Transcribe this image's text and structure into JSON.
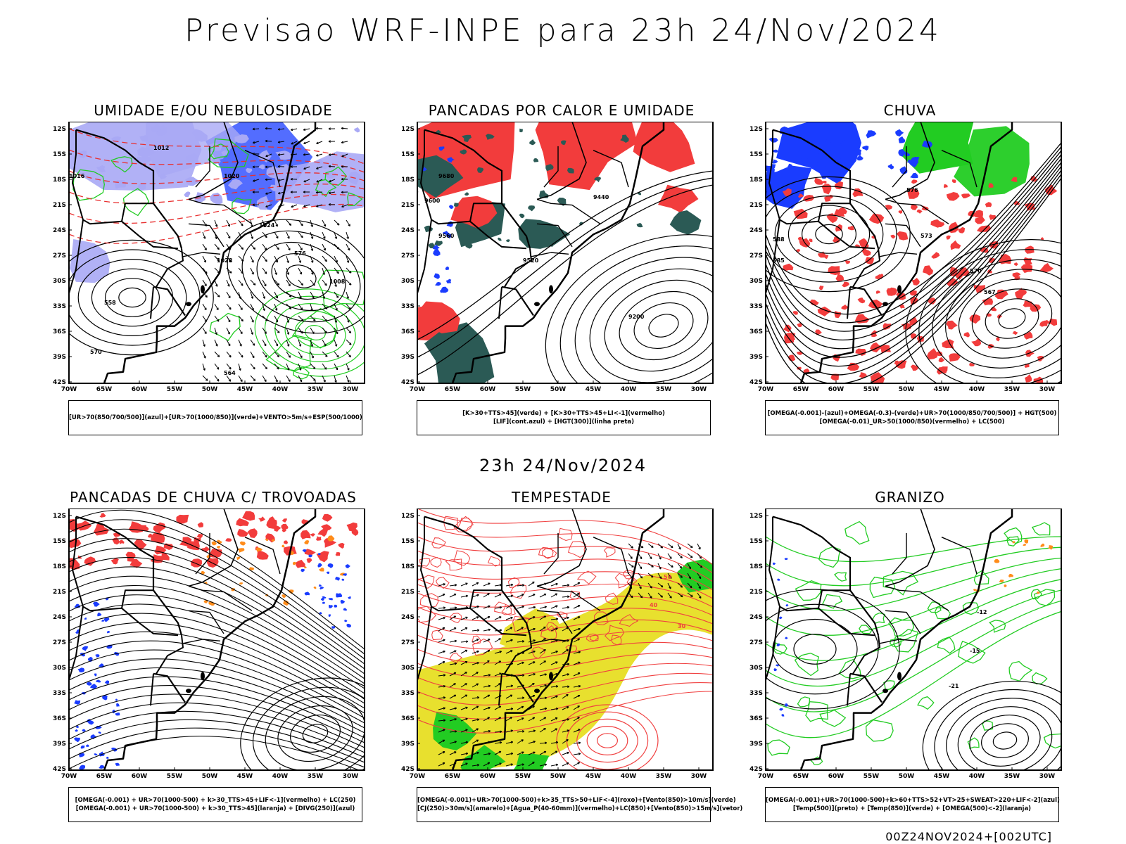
{
  "header": {
    "title": "Previsao WRF-INPE  para 23h 24/Nov/2024"
  },
  "row2": {
    "subtitle": "23h 24/Nov/2024"
  },
  "footer": {
    "run": "00Z24NOV2024+[002UTC]"
  },
  "axes": {
    "lat_labels": [
      "12S",
      "15S",
      "18S",
      "21S",
      "24S",
      "27S",
      "30S",
      "33S",
      "36S",
      "39S",
      "42S"
    ],
    "lon_labels": [
      "70W",
      "65W",
      "60W",
      "55W",
      "50W",
      "45W",
      "40W",
      "35W",
      "30W"
    ]
  },
  "colors": {
    "red": "#f23c3c",
    "green": "#22cc22",
    "blue": "#1a3cff",
    "lightblue": "#a9a9f5",
    "yellow": "#e8e02e",
    "darkteal": "#2b5a55",
    "orange": "#ff8c1a",
    "black": "#000000"
  },
  "panels": [
    {
      "title": "UMIDADE E/OU NEBULOSIDADE",
      "legend": [
        "[UR>70(850/700/500)](azul)+[UR>70(1000/850)](verde)+VENTO>5m/s+ESP(500/1000)"
      ],
      "contour_labels": [
        "1012",
        "1016",
        "1020",
        "1024",
        "1028",
        "1008",
        "576",
        "570",
        "564",
        "558"
      ]
    },
    {
      "title": "PANCADAS POR CALOR E UMIDADE",
      "legend": [
        "[K>30+TTS>45](verde) + [K>30+TTS>45+LI<-1](vermelho)",
        "[LIF](cont.azul) + [HGT(300)](linha preta)"
      ],
      "contour_labels": [
        "9680",
        "9600",
        "9520",
        "9440",
        "9200",
        "9560"
      ]
    },
    {
      "title": "CHUVA",
      "legend": [
        "[OMEGA(-0.001)-(azul)+OMEGA(-0.3)-(verde)+UR>70(1000/850/700/500)] + HGT(500)",
        "[OMEGA(-0.01)_UR>50(1000/850)(vermelho) + LC(500)"
      ],
      "contour_labels": [
        "576",
        "573",
        "570",
        "567",
        "588",
        "585"
      ]
    },
    {
      "title": "PANCADAS DE CHUVA C/ TROVOADAS",
      "legend": [
        "[OMEGA(-0.001) + UR>70(1000-500) + k>30_TTS>45+LIF<-1](vermelho) + LC(250)",
        "[OMEGA(-0.001) + UR>70(1000-500) + k>30_TTS>45](laranja) + [DIVG(250)](azul)"
      ],
      "contour_labels": []
    },
    {
      "title": "TEMPESTADE",
      "legend": [
        "[OMEGA(-0.001)+UR>70(1000-500)+k>35_TTS>50+LIF<-4](roxo)+[Vento(850)>10m/s](verde)",
        "[CJ(250)>30m/s](amarelo)+[Agua_P(40-60mm)](vermelho)+LC(850)+[Vento(850)>15m/s](vetor)"
      ],
      "contour_labels": [
        "50",
        "40",
        "30"
      ]
    },
    {
      "title": "GRANIZO",
      "legend": [
        "[OMEGA(-0.001)+UR>70(1000-500)+k>60+TTS>52+VT>25+SWEAT>220+LIF<-2](azul)",
        "[Temp(500)](preto) + [Temp(850)](verde) + [OMEGA(500)<-2](laranja)"
      ],
      "contour_labels": [
        "-12",
        "-15",
        "-21"
      ]
    }
  ]
}
